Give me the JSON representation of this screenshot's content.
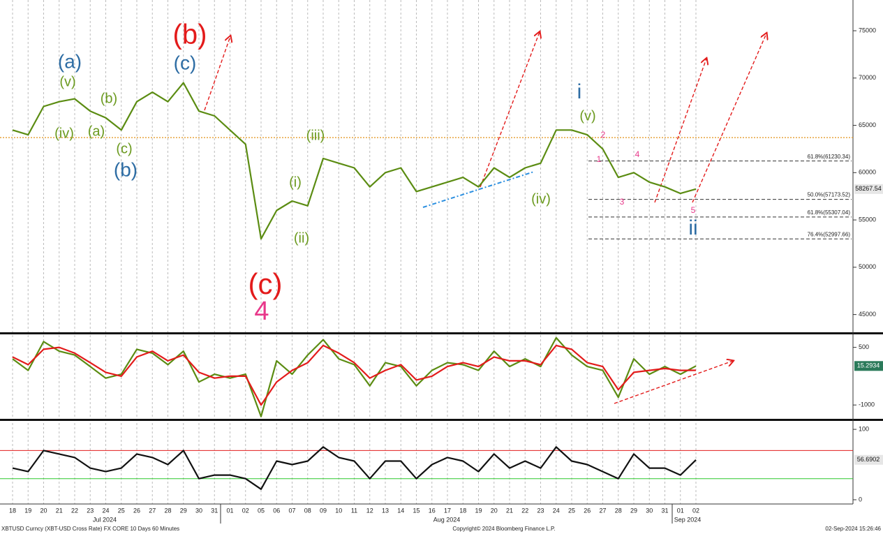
{
  "chart_data": [
    {
      "type": "line",
      "grid": true,
      "categories": [
        "18",
        "19",
        "20",
        "21",
        "22",
        "23",
        "24",
        "25",
        "26",
        "27",
        "28",
        "29",
        "30",
        "31",
        "01",
        "02",
        "05",
        "06",
        "07",
        "08",
        "09",
        "10",
        "11",
        "12",
        "13",
        "14",
        "15",
        "16",
        "17",
        "18",
        "19",
        "20",
        "21",
        "22",
        "23",
        "24",
        "25",
        "26",
        "27",
        "28",
        "29",
        "30",
        "31",
        "01",
        "02"
      ],
      "period_labels": [
        "Jul 2024",
        "Aug 2024",
        "Sep 2024"
      ],
      "ylim": [
        43200,
        78250
      ],
      "yticks": [
        45000,
        50000,
        55000,
        60000,
        65000,
        70000,
        75000
      ],
      "series": [
        {
          "color": "#5b8c12",
          "values": [
            64500,
            64000,
            67000,
            67500,
            67800,
            66500,
            65800,
            64500,
            67500,
            68500,
            67500,
            69500,
            66500,
            66000,
            64500,
            63000,
            53000,
            56000,
            57000,
            56500,
            61500,
            61000,
            60500,
            58500,
            60000,
            60500,
            58000,
            58500,
            59000,
            59500,
            58500,
            60500,
            59500,
            60500,
            61000,
            64500,
            64500,
            64000,
            62500,
            59500,
            60000,
            59000,
            58500,
            57800,
            58267.54
          ]
        }
      ],
      "last_value": {
        "value": 58267.54,
        "label": "58267.54"
      },
      "reference_line": {
        "value": 63700,
        "color": "#e8a33c"
      },
      "fib_levels": [
        {
          "value": 61230.34,
          "label": "61.8%(61230.34)"
        },
        {
          "value": 57173.52,
          "label": "50.0%(57173.52)"
        },
        {
          "value": 55307.04,
          "label": "61.8%(55307.04)"
        },
        {
          "value": 52997.66,
          "label": "76.4%(52997.66)"
        }
      ],
      "annotations": [
        {
          "text": "(a)",
          "color": "#2e6da4"
        },
        {
          "text": "(v)",
          "color": "#6b9a1f"
        },
        {
          "text": "(b)",
          "color": "#6b9a1f"
        },
        {
          "text": "(iv)",
          "color": "#6b9a1f"
        },
        {
          "text": "(a)",
          "color": "#6b9a1f"
        },
        {
          "text": "(c)",
          "color": "#6b9a1f"
        },
        {
          "text": "(b)",
          "color": "#2e6da4"
        },
        {
          "text": "(b)",
          "color": "#e31b1b"
        },
        {
          "text": "(c)",
          "color": "#2e6da4"
        },
        {
          "text": "(iii)",
          "color": "#6b9a1f"
        },
        {
          "text": "(i)",
          "color": "#6b9a1f"
        },
        {
          "text": "(ii)",
          "color": "#6b9a1f"
        },
        {
          "text": "(c)",
          "color": "#e31b1b"
        },
        {
          "text": "4",
          "color": "#e8388a"
        },
        {
          "text": "(iv)",
          "color": "#6b9a1f"
        },
        {
          "text": "i",
          "color": "#2e6da4"
        },
        {
          "text": "(v)",
          "color": "#6b9a1f"
        },
        {
          "text": "ii",
          "color": "#2e6da4"
        },
        {
          "text": "2",
          "color": "#e8388a"
        },
        {
          "text": "1",
          "color": "#e8388a"
        },
        {
          "text": "3",
          "color": "#e8388a"
        },
        {
          "text": "4",
          "color": "#e8388a"
        },
        {
          "text": "5",
          "color": "#e8388a"
        }
      ]
    },
    {
      "type": "line",
      "ylim": [
        -1360,
        820
      ],
      "yticks": [
        500,
        -1000
      ],
      "series": [
        {
          "color": "#5b8c12",
          "values": [
            200,
            -100,
            650,
            400,
            300,
            0,
            -300,
            -200,
            450,
            350,
            50,
            400,
            -400,
            -200,
            -300,
            -200,
            -1300,
            150,
            -200,
            300,
            700,
            200,
            50,
            -500,
            100,
            0,
            -500,
            -100,
            100,
            50,
            -100,
            400,
            0,
            200,
            0,
            750,
            300,
            0,
            -100,
            -800,
            200,
            -200,
            0,
            -200,
            15.2934
          ]
        },
        {
          "color": "#e31b1b",
          "values": [
            250,
            50,
            450,
            500,
            350,
            100,
            -150,
            -250,
            250,
            400,
            150,
            300,
            -150,
            -300,
            -250,
            -250,
            -1000,
            -400,
            -100,
            100,
            550,
            350,
            100,
            -300,
            -100,
            50,
            -350,
            -250,
            0,
            100,
            0,
            250,
            150,
            150,
            50,
            550,
            450,
            100,
            0,
            -600,
            -150,
            -100,
            -50,
            -100,
            -97.0058
          ]
        }
      ],
      "last_value": {
        "value": 15.2934,
        "label": "15.2934"
      }
    },
    {
      "type": "line",
      "ylim": [
        -6,
        111
      ],
      "yticks": [
        100,
        0
      ],
      "levels": [
        {
          "value": 70,
          "color": "#e31b1b"
        },
        {
          "value": 30,
          "color": "#2ec92e"
        }
      ],
      "series": [
        {
          "color": "#111111",
          "values": [
            45,
            40,
            70,
            65,
            60,
            45,
            40,
            45,
            65,
            60,
            50,
            70,
            30,
            35,
            35,
            30,
            15,
            55,
            50,
            55,
            75,
            60,
            55,
            30,
            55,
            55,
            30,
            50,
            60,
            55,
            40,
            65,
            45,
            55,
            45,
            75,
            55,
            50,
            40,
            30,
            65,
            45,
            45,
            35,
            56.6902
          ]
        }
      ],
      "last_value": {
        "value": 56.6902,
        "label": "56.6902"
      }
    }
  ],
  "footer": {
    "left": "XBTUSD Curncy (XBT-USD Cross Rate) FX CORE 10 Days 60 Minutes",
    "center": "Copyright© 2024 Bloomberg Finance L.P.",
    "right": "02-Sep-2024 15:26:46"
  }
}
